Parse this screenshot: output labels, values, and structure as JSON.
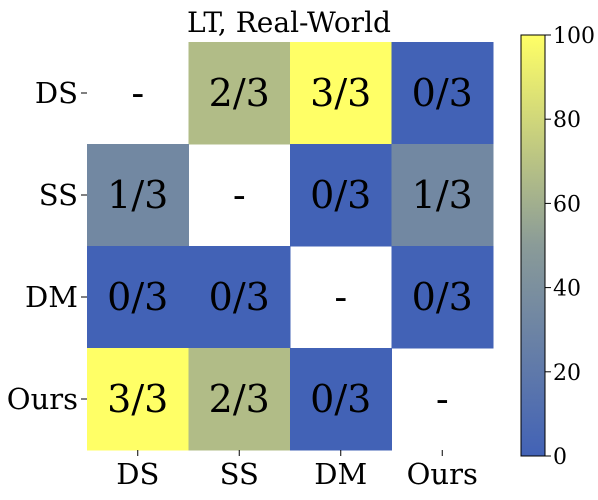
{
  "chart_data": {
    "type": "heatmap",
    "title": "LT, Real-World",
    "rows": [
      "DS",
      "SS",
      "DM",
      "Ours"
    ],
    "columns": [
      "DS",
      "SS",
      "DM",
      "Ours"
    ],
    "cells": [
      [
        {
          "label": "-",
          "value": null
        },
        {
          "label": "2/3",
          "value": 66.7
        },
        {
          "label": "3/3",
          "value": 100
        },
        {
          "label": "0/3",
          "value": 0
        }
      ],
      [
        {
          "label": "1/3",
          "value": 33.3
        },
        {
          "label": "-",
          "value": null
        },
        {
          "label": "0/3",
          "value": 0
        },
        {
          "label": "1/3",
          "value": 33.3
        }
      ],
      [
        {
          "label": "0/3",
          "value": 0
        },
        {
          "label": "0/3",
          "value": 0
        },
        {
          "label": "-",
          "value": null
        },
        {
          "label": "0/3",
          "value": 0
        }
      ],
      [
        {
          "label": "3/3",
          "value": 100
        },
        {
          "label": "2/3",
          "value": 66.7
        },
        {
          "label": "0/3",
          "value": 0
        },
        {
          "label": "-",
          "value": null
        }
      ]
    ],
    "colorbar": {
      "min": 0,
      "max": 100,
      "ticks": [
        "0",
        "20",
        "40",
        "60",
        "80",
        "100"
      ],
      "low_color": "#4262b6",
      "mid_color": "#8a9b98",
      "high_color": "#ffff66"
    },
    "xlabel": "",
    "ylabel": "",
    "grid": false
  }
}
